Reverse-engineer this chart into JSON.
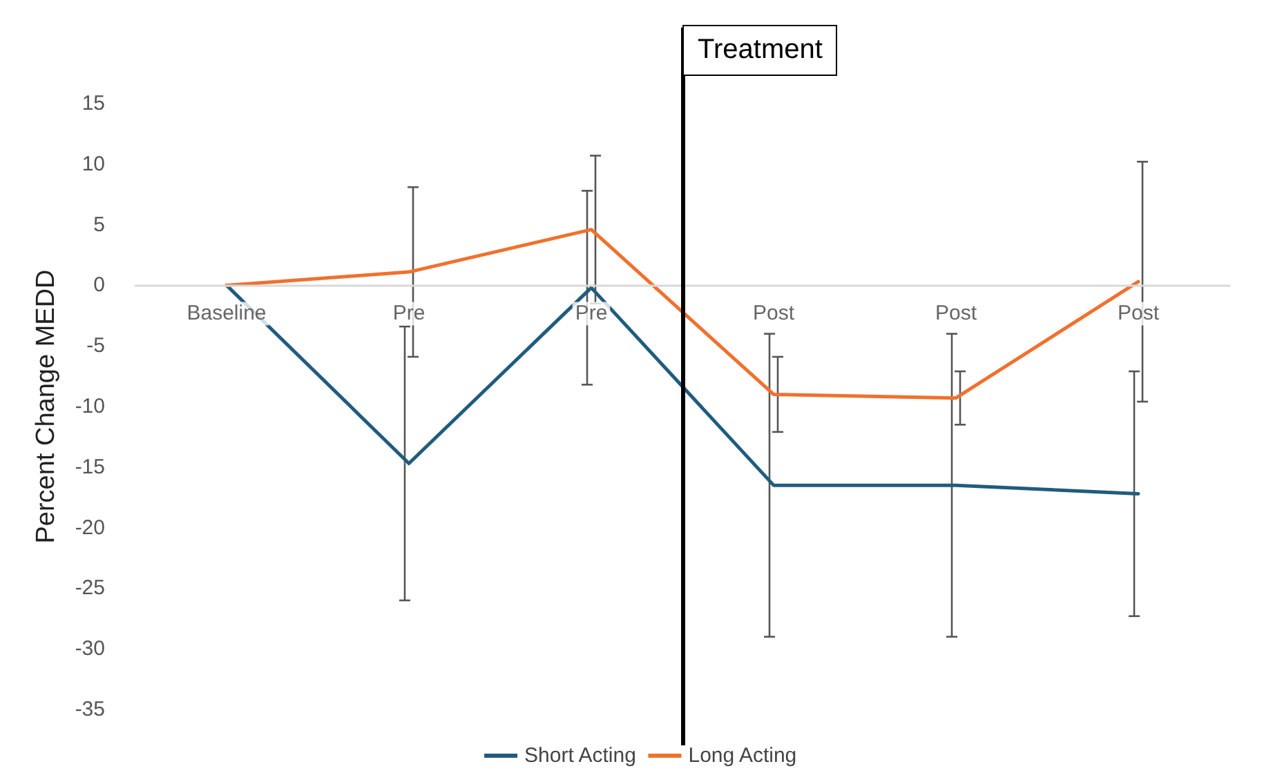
{
  "chart_data": {
    "type": "line",
    "ylabel": "Percent Change MEDD",
    "categories": [
      "Baseline",
      "Pre",
      "Pre",
      "Post",
      "Post",
      "Post"
    ],
    "series": [
      {
        "name": "Short Acting",
        "color": "#1f5c7f",
        "values": [
          0,
          -14.7,
          -0.2,
          -16.5,
          -16.5,
          -17.2
        ],
        "errors": [
          null,
          11.3,
          8,
          12.5,
          12.5,
          10.1
        ]
      },
      {
        "name": "Long Acting",
        "color": "#f0712d",
        "values": [
          0,
          1.1,
          4.6,
          -9.0,
          -9.3,
          0.3
        ],
        "errors": [
          null,
          7,
          6.1,
          3.1,
          2.2,
          9.9
        ]
      }
    ],
    "ylim": [
      -35,
      15
    ],
    "yticks": [
      -35,
      -30,
      -25,
      -20,
      -15,
      -10,
      -5,
      0,
      5,
      10,
      15
    ],
    "grid": false,
    "legend": "bottom",
    "marker": "none",
    "line_style": "solid",
    "annotations": [
      "Treatment"
    ]
  }
}
